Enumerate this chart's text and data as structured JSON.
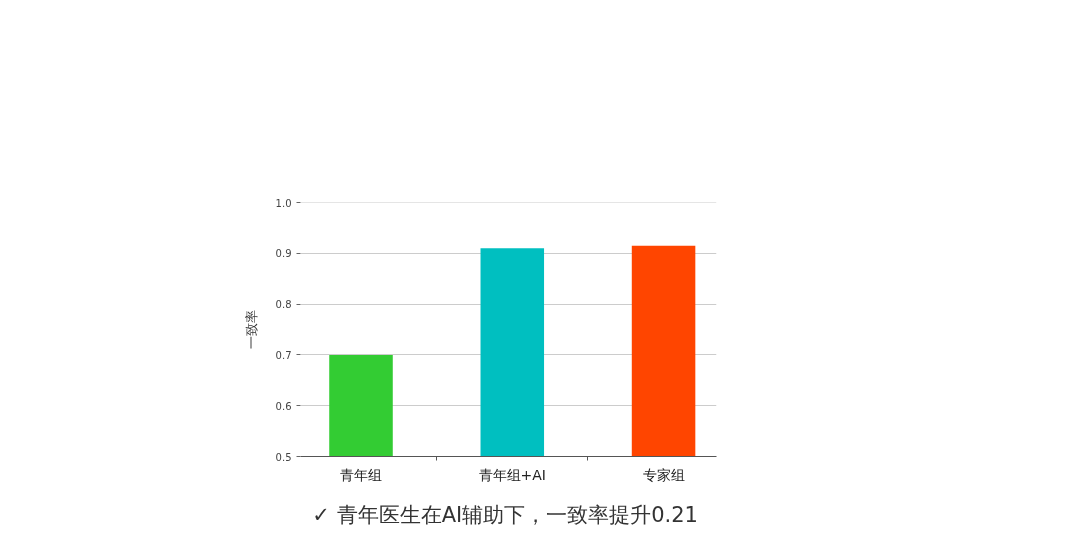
{
  "chart_data": {
    "type": "bar",
    "categories": [
      "青年组",
      "青年组+AI",
      "专家组"
    ],
    "values": [
      0.7,
      0.91,
      0.915
    ],
    "colors": [
      "#33cc33",
      "#00bfc0",
      "#ff4500"
    ],
    "ylabel": "一致率",
    "ylim": [
      0.5,
      1.0
    ],
    "yticks": [
      0.5,
      0.6,
      0.7,
      0.8,
      0.9,
      {
        "value": 1.0,
        "label": "1.0"
      }
    ],
    "grid": "y",
    "annotations": [
      "✓  青年医生在AI辅助下，一致率提升0.21"
    ]
  }
}
